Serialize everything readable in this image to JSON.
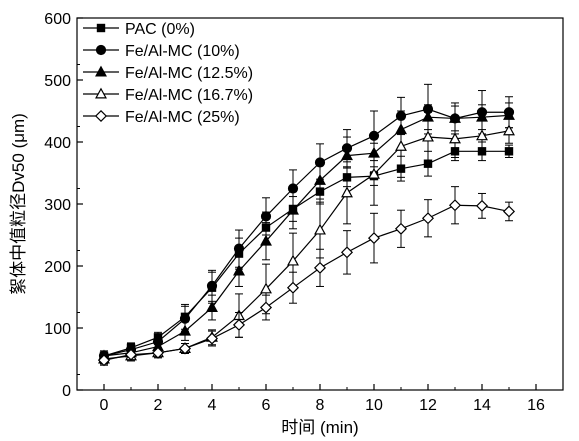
{
  "chart_data": {
    "type": "line",
    "xlabel": "时间 (min)",
    "ylabel": "絮体中值粒径Dv50 (μm)",
    "xlim": [
      -1,
      17
    ],
    "ylim": [
      0,
      600
    ],
    "xticks": [
      0,
      2,
      4,
      6,
      8,
      10,
      12,
      14,
      16
    ],
    "yticks": [
      0,
      100,
      200,
      300,
      400,
      500,
      600
    ],
    "x": [
      0,
      1,
      2,
      3,
      4,
      5,
      6,
      7,
      8,
      9,
      10,
      11,
      12,
      13,
      14,
      15
    ],
    "legend_position": "top-left",
    "grid": false,
    "series": [
      {
        "name": "PAC (0%)",
        "marker": "square",
        "filled": true,
        "values": [
          55,
          68,
          85,
          118,
          165,
          220,
          262,
          292,
          320,
          343,
          345,
          357,
          365,
          385,
          385,
          385
        ],
        "errors": [
          8,
          8,
          8,
          20,
          25,
          25,
          25,
          20,
          20,
          15,
          15,
          20,
          20,
          15,
          15,
          10
        ]
      },
      {
        "name": "Fe/Al-MC (10%)",
        "marker": "circle",
        "filled": true,
        "values": [
          55,
          65,
          78,
          115,
          168,
          228,
          280,
          325,
          367,
          390,
          410,
          442,
          453,
          438,
          448,
          448
        ],
        "errors": [
          8,
          10,
          10,
          20,
          25,
          30,
          30,
          30,
          30,
          30,
          40,
          30,
          40,
          20,
          35,
          25
        ]
      },
      {
        "name": "Fe/Al-MC (12.5%)",
        "marker": "triangle-up",
        "filled": true,
        "values": [
          55,
          60,
          70,
          95,
          133,
          192,
          240,
          290,
          338,
          378,
          382,
          420,
          440,
          438,
          440,
          443
        ],
        "errors": [
          8,
          8,
          8,
          15,
          20,
          25,
          30,
          30,
          30,
          30,
          30,
          30,
          20,
          25,
          20,
          20
        ]
      },
      {
        "name": "Fe/Al-MC (16.7%)",
        "marker": "triangle-up",
        "filled": false,
        "values": [
          50,
          55,
          60,
          67,
          85,
          120,
          163,
          208,
          258,
          318,
          348,
          393,
          408,
          405,
          410,
          418
        ],
        "errors": [
          8,
          8,
          8,
          8,
          12,
          35,
          40,
          45,
          45,
          50,
          50,
          50,
          40,
          30,
          30,
          20
        ]
      },
      {
        "name": "Fe/Al-MC (25%)",
        "marker": "diamond",
        "filled": false,
        "values": [
          48,
          57,
          60,
          67,
          83,
          105,
          133,
          165,
          197,
          222,
          245,
          260,
          277,
          298,
          297,
          288
        ],
        "errors": [
          8,
          10,
          8,
          8,
          12,
          20,
          20,
          25,
          30,
          35,
          40,
          30,
          30,
          30,
          20,
          15
        ]
      }
    ]
  }
}
